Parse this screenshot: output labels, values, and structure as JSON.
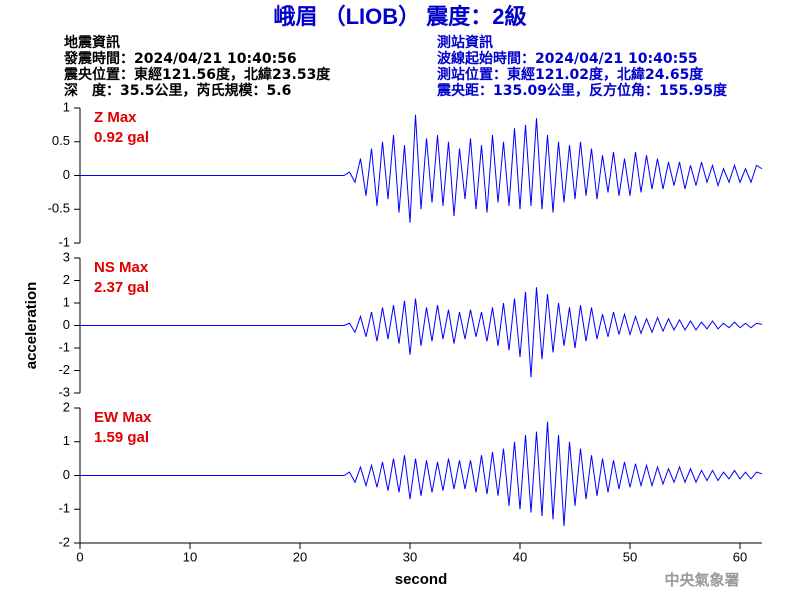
{
  "header": {
    "title": "峨眉 （LIOB） 震度：2級",
    "left": [
      "地震資訊",
      "發震時間：2024/04/21 10:40:56",
      "震央位置：東經121.56度，北緯23.53度",
      "深　度：35.5公里，芮氏規模：5.6"
    ],
    "right": [
      "測站資訊",
      "波線起始時間：2024/04/21 10:40:55",
      "測站位置：東經121.02度，北緯24.65度",
      "震央距：135.09公里，反方位角：155.95度"
    ]
  },
  "footer": "中央氣象署",
  "chart_data": [
    {
      "type": "line",
      "label": "Z Max",
      "max_label": "0.92 gal",
      "color": "#0000ff",
      "xlim": [
        0,
        62
      ],
      "ylim": [
        -1,
        1
      ],
      "yticks": [
        -1,
        -0.5,
        0,
        0.5,
        1
      ],
      "x": [
        0,
        24,
        24.5,
        25,
        25.5,
        26,
        26.5,
        27,
        27.5,
        28,
        28.5,
        29,
        29.5,
        30,
        30.5,
        31,
        31.5,
        32,
        32.5,
        33,
        33.5,
        34,
        34.5,
        35,
        35.5,
        36,
        36.5,
        37,
        37.5,
        38,
        38.5,
        39,
        39.5,
        40,
        40.5,
        41,
        41.5,
        42,
        42.5,
        43,
        43.5,
        44,
        44.5,
        45,
        45.5,
        46,
        46.5,
        47,
        47.5,
        48,
        48.5,
        49,
        49.5,
        50,
        50.5,
        51,
        51.5,
        52,
        52.5,
        53,
        53.5,
        54,
        54.5,
        55,
        55.5,
        56,
        56.5,
        57,
        57.5,
        58,
        58.5,
        59,
        59.5,
        60,
        60.5,
        61,
        61.5,
        62
      ],
      "values": [
        0,
        0,
        0.05,
        -0.1,
        0.25,
        -0.3,
        0.4,
        -0.45,
        0.5,
        -0.35,
        0.6,
        -0.55,
        0.45,
        -0.7,
        0.9,
        -0.5,
        0.55,
        -0.4,
        0.6,
        -0.45,
        0.5,
        -0.6,
        0.4,
        -0.35,
        0.55,
        -0.5,
        0.45,
        -0.55,
        0.6,
        -0.4,
        0.5,
        -0.45,
        0.7,
        -0.5,
        0.75,
        -0.45,
        0.85,
        -0.5,
        0.6,
        -0.55,
        0.5,
        -0.4,
        0.45,
        -0.35,
        0.5,
        -0.3,
        0.4,
        -0.35,
        0.3,
        -0.25,
        0.35,
        -0.3,
        0.25,
        -0.3,
        0.35,
        -0.25,
        0.3,
        -0.2,
        0.25,
        -0.2,
        0.2,
        -0.15,
        0.2,
        -0.2,
        0.15,
        -0.15,
        0.2,
        -0.1,
        0.15,
        -0.15,
        0.1,
        -0.1,
        0.15,
        -0.1,
        0.1,
        -0.1,
        0.15,
        0.1
      ]
    },
    {
      "type": "line",
      "label": "NS Max",
      "max_label": "2.37 gal",
      "color": "#0000ff",
      "ylabel": "acceleration",
      "xlim": [
        0,
        62
      ],
      "ylim": [
        -3,
        3
      ],
      "yticks": [
        -3,
        -2,
        -1,
        0,
        1,
        2,
        3
      ],
      "x": [
        0,
        24,
        24.5,
        25,
        25.5,
        26,
        26.5,
        27,
        27.5,
        28,
        28.5,
        29,
        29.5,
        30,
        30.5,
        31,
        31.5,
        32,
        32.5,
        33,
        33.5,
        34,
        34.5,
        35,
        35.5,
        36,
        36.5,
        37,
        37.5,
        38,
        38.5,
        39,
        39.5,
        40,
        40.5,
        41,
        41.5,
        42,
        42.5,
        43,
        43.5,
        44,
        44.5,
        45,
        45.5,
        46,
        46.5,
        47,
        47.5,
        48,
        48.5,
        49,
        49.5,
        50,
        50.5,
        51,
        51.5,
        52,
        52.5,
        53,
        53.5,
        54,
        54.5,
        55,
        55.5,
        56,
        56.5,
        57,
        57.5,
        58,
        58.5,
        59,
        59.5,
        60,
        60.5,
        61,
        61.5,
        62
      ],
      "values": [
        0,
        0,
        0.1,
        -0.3,
        0.4,
        -0.5,
        0.6,
        -0.7,
        0.8,
        -0.6,
        0.9,
        -0.8,
        1.1,
        -1.3,
        1.2,
        -0.9,
        0.8,
        -0.7,
        0.9,
        -0.6,
        0.7,
        -0.8,
        0.6,
        -0.6,
        0.7,
        -0.5,
        0.6,
        -0.7,
        0.8,
        -0.9,
        1.0,
        -1.1,
        1.2,
        -1.4,
        1.5,
        -2.3,
        1.7,
        -1.5,
        1.4,
        -1.2,
        1.0,
        -0.9,
        0.8,
        -1.0,
        0.9,
        -0.7,
        0.8,
        -0.6,
        0.5,
        -0.5,
        0.6,
        -0.4,
        0.5,
        -0.4,
        0.4,
        -0.35,
        0.3,
        -0.3,
        0.35,
        -0.25,
        0.3,
        -0.2,
        0.25,
        -0.2,
        0.2,
        -0.2,
        0.15,
        -0.15,
        0.2,
        -0.15,
        0.1,
        -0.1,
        0.15,
        -0.1,
        0.1,
        -0.1,
        0.1,
        0.05
      ]
    },
    {
      "type": "line",
      "label": "EW Max",
      "max_label": "1.59 gal",
      "color": "#0000ff",
      "xlabel": "second",
      "xlim": [
        0,
        62
      ],
      "xticks": [
        0,
        10,
        20,
        30,
        40,
        50,
        60
      ],
      "ylim": [
        -2,
        2
      ],
      "yticks": [
        -2,
        -1,
        0,
        1,
        2
      ],
      "x": [
        0,
        24,
        24.5,
        25,
        25.5,
        26,
        26.5,
        27,
        27.5,
        28,
        28.5,
        29,
        29.5,
        30,
        30.5,
        31,
        31.5,
        32,
        32.5,
        33,
        33.5,
        34,
        34.5,
        35,
        35.5,
        36,
        36.5,
        37,
        37.5,
        38,
        38.5,
        39,
        39.5,
        40,
        40.5,
        41,
        41.5,
        42,
        42.5,
        43,
        43.5,
        44,
        44.5,
        45,
        45.5,
        46,
        46.5,
        47,
        47.5,
        48,
        48.5,
        49,
        49.5,
        50,
        50.5,
        51,
        51.5,
        52,
        52.5,
        53,
        53.5,
        54,
        54.5,
        55,
        55.5,
        56,
        56.5,
        57,
        57.5,
        58,
        58.5,
        59,
        59.5,
        60,
        60.5,
        61,
        61.5,
        62
      ],
      "values": [
        0,
        0,
        0.1,
        -0.2,
        0.25,
        -0.3,
        0.3,
        -0.35,
        0.4,
        -0.45,
        0.5,
        -0.5,
        0.6,
        -0.7,
        0.5,
        -0.6,
        0.45,
        -0.5,
        0.4,
        -0.45,
        0.5,
        -0.4,
        0.45,
        -0.4,
        0.45,
        -0.5,
        0.6,
        -0.55,
        0.7,
        -0.6,
        0.8,
        -0.9,
        1.0,
        -1.0,
        1.2,
        -1.1,
        1.3,
        -1.2,
        1.59,
        -1.3,
        1.2,
        -1.5,
        1.0,
        -0.9,
        0.8,
        -0.7,
        0.6,
        -0.6,
        0.5,
        -0.5,
        0.45,
        -0.4,
        0.4,
        -0.35,
        0.35,
        -0.3,
        0.3,
        -0.3,
        0.25,
        -0.25,
        0.2,
        -0.2,
        0.25,
        -0.2,
        0.2,
        -0.2,
        0.15,
        -0.15,
        0.15,
        -0.15,
        0.1,
        -0.1,
        0.15,
        -0.1,
        0.1,
        -0.1,
        0.1,
        0.05
      ]
    }
  ]
}
